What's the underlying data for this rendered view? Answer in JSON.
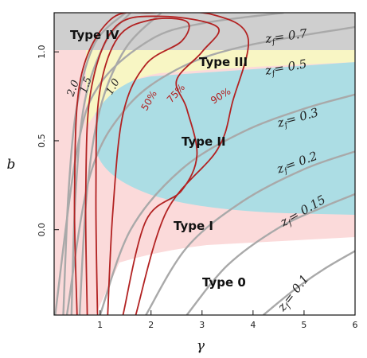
{
  "chart_data": {
    "type": "area",
    "title": "",
    "xlabel": "γ",
    "ylabel": "b",
    "xlim": [
      0.1,
      6.0
    ],
    "ylim": [
      -0.48,
      1.22
    ],
    "x_ticks": [
      "1",
      "2",
      "3",
      "4",
      "5",
      "6"
    ],
    "y_ticks": [
      "0.0",
      "0.5",
      "1.0"
    ],
    "regions": [
      {
        "label": "Type IV",
        "color": "#cfcfcf"
      },
      {
        "label": "Type III",
        "color": "#f8f6c4"
      },
      {
        "label": "Type II",
        "color": "#acdde4"
      },
      {
        "label": "Type I",
        "color": "#fbdada"
      },
      {
        "label": "Type 0",
        "color": "#ffffff"
      }
    ],
    "zf_curves": {
      "color": "#a9a9a9",
      "series": [
        {
          "name": "z_f = 0.7",
          "label_eq": "= 0.7",
          "points": [
            [
              0.12,
              -0.48
            ],
            [
              0.55,
              0.45
            ],
            [
              1.0,
              0.82
            ],
            [
              2.0,
              1.07
            ],
            [
              3.0,
              1.16
            ],
            [
              4.6,
              1.22
            ]
          ]
        },
        {
          "name": "z_f = 0.5",
          "label_eq": "= 0.5",
          "points": [
            [
              0.35,
              -0.48
            ],
            [
              0.8,
              0.3
            ],
            [
              1.5,
              0.68
            ],
            [
              2.5,
              0.9
            ],
            [
              3.8,
              1.03
            ],
            [
              6.0,
              1.14
            ]
          ]
        },
        {
          "name": "z_f = 0.3",
          "label_eq": "= 0.3",
          "points": [
            [
              1.0,
              -0.48
            ],
            [
              1.6,
              0.0
            ],
            [
              2.6,
              0.34
            ],
            [
              3.8,
              0.55
            ],
            [
              5.0,
              0.68
            ],
            [
              6.0,
              0.76
            ]
          ]
        },
        {
          "name": "z_f = 0.2",
          "label_eq": "= 0.2",
          "points": [
            [
              1.9,
              -0.48
            ],
            [
              2.7,
              -0.1
            ],
            [
              3.8,
              0.16
            ],
            [
              5.0,
              0.34
            ],
            [
              6.0,
              0.44
            ]
          ]
        },
        {
          "name": "z_f = 0.15",
          "label_eq": "= 0.15",
          "points": [
            [
              2.7,
              -0.48
            ],
            [
              3.5,
              -0.2
            ],
            [
              4.5,
              0.01
            ],
            [
              5.4,
              0.13
            ],
            [
              6.0,
              0.2
            ]
          ]
        },
        {
          "name": "z_f = 0.1",
          "label_eq": "= 0.1",
          "points": [
            [
              4.2,
              -0.48
            ],
            [
              4.8,
              -0.34
            ],
            [
              5.4,
              -0.22
            ],
            [
              6.0,
              -0.12
            ]
          ]
        }
      ],
      "extra_labels": [
        "2.0",
        "1.5",
        "1.0"
      ],
      "extra_curves": [
        {
          "points": [
            [
              0.28,
              -0.48
            ],
            [
              0.38,
              0.2
            ],
            [
              0.55,
              0.7
            ],
            [
              0.9,
              1.05
            ],
            [
              1.5,
              1.22
            ]
          ]
        },
        {
          "points": [
            [
              0.44,
              -0.48
            ],
            [
              0.52,
              0.2
            ],
            [
              0.7,
              0.72
            ],
            [
              1.1,
              1.05
            ],
            [
              1.6,
              1.22
            ]
          ]
        },
        {
          "points": [
            [
              0.6,
              -0.48
            ],
            [
              0.74,
              0.2
            ],
            [
              1.0,
              0.68
            ],
            [
              1.5,
              1.02
            ],
            [
              2.2,
              1.22
            ]
          ]
        }
      ]
    },
    "confidence_contours": {
      "color": "#b22222",
      "series": [
        {
          "name": "50%",
          "points": [
            [
              0.95,
              -0.48
            ],
            [
              0.92,
              0.2
            ],
            [
              0.98,
              0.75
            ],
            [
              1.35,
              1.08
            ],
            [
              2.0,
              1.18
            ],
            [
              2.7,
              1.17
            ],
            [
              2.6,
              1.06
            ],
            [
              1.9,
              0.93
            ],
            [
              1.45,
              0.65
            ],
            [
              1.25,
              0.1
            ],
            [
              1.15,
              -0.48
            ]
          ]
        },
        {
          "name": "75%",
          "points": [
            [
              0.75,
              -0.48
            ],
            [
              0.72,
              0.2
            ],
            [
              0.82,
              0.78
            ],
            [
              1.3,
              1.14
            ],
            [
              2.2,
              1.2
            ],
            [
              3.3,
              1.14
            ],
            [
              3.0,
              1.0
            ],
            [
              2.5,
              0.84
            ],
            [
              2.7,
              0.68
            ],
            [
              2.9,
              0.42
            ],
            [
              2.6,
              0.22
            ],
            [
              1.9,
              0.05
            ],
            [
              1.45,
              -0.48
            ]
          ]
        },
        {
          "name": "90%",
          "points": [
            [
              0.55,
              -0.48
            ],
            [
              0.5,
              0.2
            ],
            [
              0.62,
              0.85
            ],
            [
              1.2,
              1.18
            ],
            [
              2.0,
              1.22
            ],
            [
              3.2,
              1.21
            ],
            [
              3.9,
              1.08
            ],
            [
              3.6,
              0.72
            ],
            [
              3.3,
              0.45
            ],
            [
              2.3,
              0.1
            ],
            [
              1.7,
              -0.48
            ]
          ]
        }
      ]
    }
  }
}
